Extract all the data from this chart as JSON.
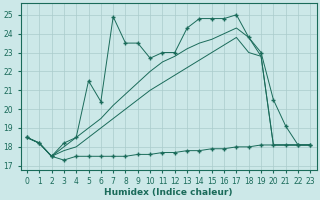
{
  "xlabel": "Humidex (Indice chaleur)",
  "bg_color": "#cce8e8",
  "grid_color": "#aacccc",
  "line_color": "#1a6b5a",
  "xlim": [
    -0.5,
    23.5
  ],
  "ylim": [
    16.8,
    25.6
  ],
  "yticks": [
    17,
    18,
    19,
    20,
    21,
    22,
    23,
    24,
    25
  ],
  "xticks": [
    0,
    1,
    2,
    3,
    4,
    5,
    6,
    7,
    8,
    9,
    10,
    11,
    12,
    13,
    14,
    15,
    16,
    17,
    18,
    19,
    20,
    21,
    22,
    23
  ],
  "line_flat_x": [
    0,
    1,
    2,
    3,
    4,
    5,
    6,
    7,
    8,
    9,
    10,
    11,
    12,
    13,
    14,
    15,
    16,
    17,
    18,
    19,
    20,
    21,
    22,
    23
  ],
  "line_flat_y": [
    18.5,
    18.2,
    17.5,
    17.3,
    17.5,
    17.5,
    17.5,
    17.5,
    17.5,
    17.6,
    17.6,
    17.7,
    17.7,
    17.8,
    17.8,
    17.9,
    17.9,
    18.0,
    18.0,
    18.1,
    18.1,
    18.1,
    18.1,
    18.1
  ],
  "line_jagged_x": [
    0,
    1,
    2,
    3,
    4,
    5,
    6,
    7,
    8,
    9,
    10,
    11,
    12,
    13,
    14,
    15,
    16,
    17,
    18,
    19,
    20,
    21,
    22,
    23
  ],
  "line_jagged_y": [
    18.5,
    18.2,
    17.5,
    18.2,
    18.5,
    21.5,
    20.4,
    24.9,
    23.5,
    23.5,
    22.7,
    23.0,
    23.0,
    24.3,
    24.8,
    24.8,
    24.8,
    25.0,
    23.8,
    23.0,
    20.5,
    19.1,
    18.1,
    18.1
  ],
  "line_diag1_x": [
    0,
    1,
    2,
    3,
    4,
    5,
    6,
    7,
    8,
    9,
    10,
    11,
    12,
    13,
    14,
    15,
    16,
    17,
    18,
    19,
    20,
    21,
    22,
    23
  ],
  "line_diag1_y": [
    18.5,
    18.2,
    17.5,
    18.0,
    18.5,
    19.0,
    19.5,
    20.2,
    20.8,
    21.4,
    22.0,
    22.5,
    22.8,
    23.2,
    23.5,
    23.7,
    24.0,
    24.3,
    23.8,
    22.8,
    18.1,
    18.1,
    18.1,
    18.1
  ],
  "line_diag2_x": [
    0,
    1,
    2,
    3,
    4,
    5,
    6,
    7,
    8,
    9,
    10,
    11,
    12,
    13,
    14,
    15,
    16,
    17,
    18,
    19,
    20,
    21,
    22,
    23
  ],
  "line_diag2_y": [
    18.5,
    18.2,
    17.5,
    17.8,
    18.0,
    18.5,
    19.0,
    19.5,
    20.0,
    20.5,
    21.0,
    21.4,
    21.8,
    22.2,
    22.6,
    23.0,
    23.4,
    23.8,
    23.0,
    22.8,
    18.1,
    18.1,
    18.1,
    18.1
  ]
}
